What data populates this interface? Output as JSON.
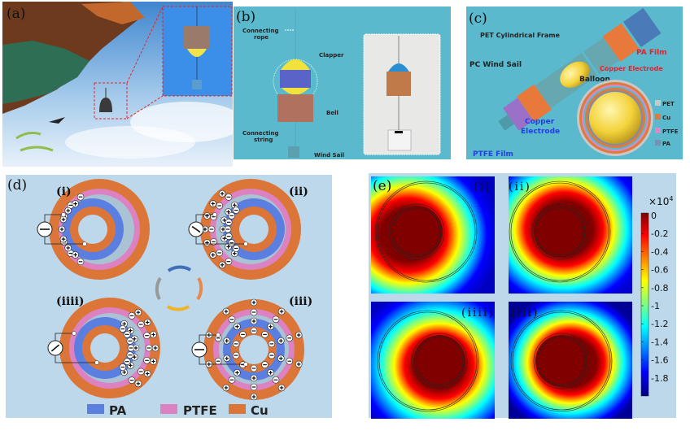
{
  "panel_a": {
    "label": "(a)"
  },
  "panel_b": {
    "label": "(b)",
    "annotations": {
      "rope": [
        "Connecting",
        "rope"
      ],
      "clapper": "Clapper",
      "bell": "Bell",
      "string": [
        "Connecting",
        "string"
      ],
      "sail": "Wind Sail"
    }
  },
  "panel_c": {
    "label": "(c)",
    "annotations": {
      "frame": "PET Cylindrical Frame",
      "sail": "PC Wind Sail",
      "pa_film": "PA Film",
      "copper_top": "Copper Electrode",
      "balloon": "Balloon",
      "copper_bottom": [
        "Copper",
        "Electrode"
      ],
      "ptfe": "PTFE Film"
    },
    "legend": [
      "PET",
      "Cu",
      "PTFE",
      "PA"
    ],
    "colors": {
      "PET": "#c8c8c8",
      "Cu": "#e07a3a",
      "PTFE": "#d98bc4",
      "PA": "#7b8db0"
    }
  },
  "panel_d": {
    "label": "(d)",
    "states": [
      "(i)",
      "(ii)",
      "(iii)",
      "(iiii)"
    ],
    "legend": [
      {
        "name": "PA",
        "color": "#5b7fe0"
      },
      {
        "name": "PTFE",
        "color": "#dc82c2"
      },
      {
        "name": "Cu",
        "color": "#dc7638"
      }
    ]
  },
  "panel_e": {
    "label": "(e)",
    "states": [
      "(i)",
      "(ii)",
      "(iiii)",
      "(iii)"
    ],
    "colorbar": {
      "multiplier": "×10",
      "exponent": "4",
      "ticks": [
        "0",
        "-0.2",
        "-0.4",
        "-0.6",
        "-0.8",
        "-1",
        "-1.2",
        "-1.4",
        "-1.6",
        "-1.8"
      ],
      "range": [
        -19000,
        0
      ],
      "colormap": "jet"
    }
  }
}
